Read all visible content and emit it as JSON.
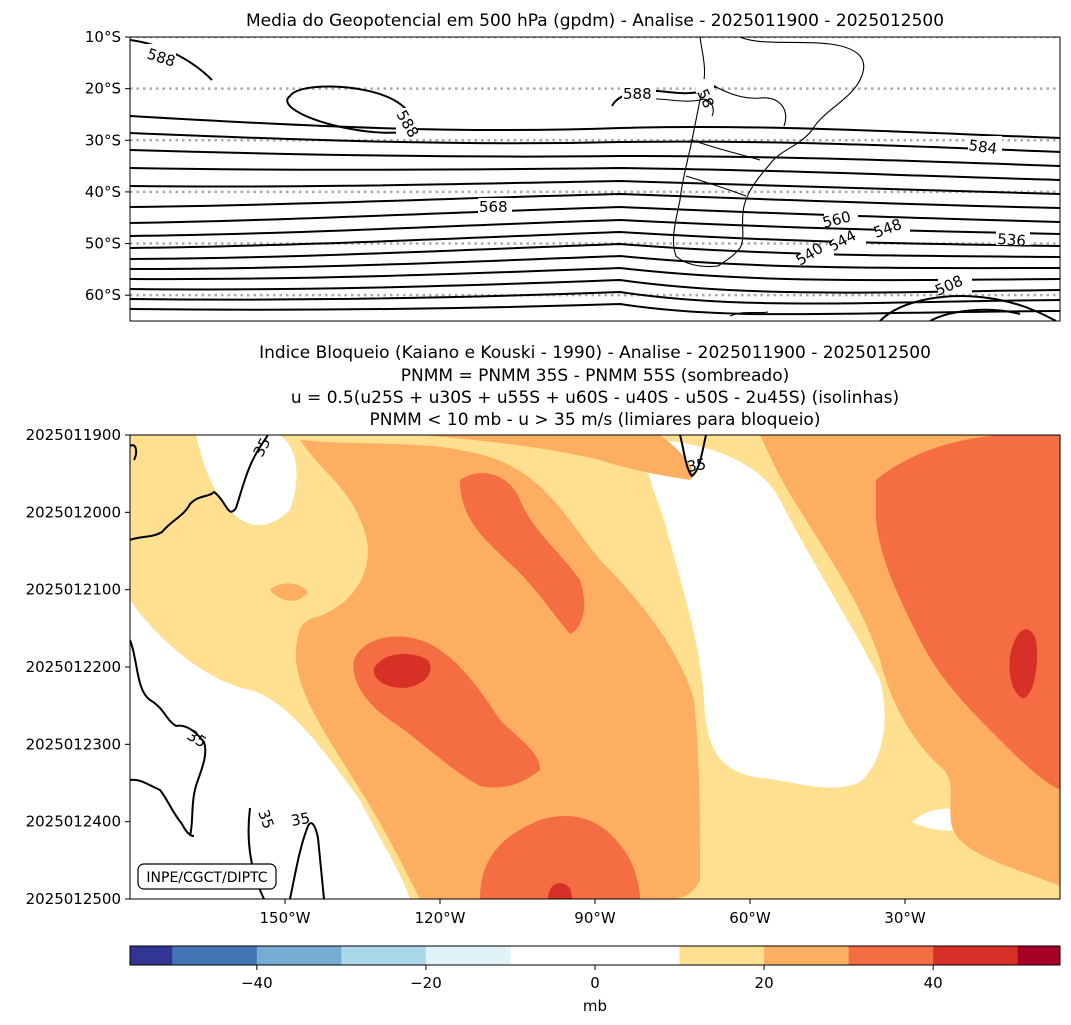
{
  "chart_data": [
    {
      "type": "contour",
      "title": "Media do Geopotencial em 500 hPa (gpdm) - Analise - 2025011900 - 2025012500",
      "y_tick_labels": [
        "10°S",
        "20°S",
        "30°S",
        "40°S",
        "50°S",
        "60°S"
      ],
      "y_tick_values": [
        -10,
        -20,
        -30,
        -40,
        -50,
        -60
      ],
      "ylim": [
        -65,
        -10
      ],
      "xlim": [
        -180,
        0
      ],
      "grid": "latitude lines dotted",
      "contour_interval_gpdm": 4,
      "contour_labels": [
        "588",
        "588",
        "588",
        "58",
        "584",
        "568",
        "560",
        "548",
        "544",
        "540",
        "536",
        "508"
      ]
    },
    {
      "type": "heatmap",
      "title_lines": [
        "Indice Bloqueio (Kaiano e Kouski - 1990) - Analise - 2025011900 - 2025012500",
        "PNMM = PNMM 35S - PNMM 55S (sombreado)",
        "u = 0.5(u25S + u30S + u55S + u60S - u40S - u50S - 2u45S) (isolinhas)",
        "PNMM < 10 mb - u > 35 m/s (limiares para bloqueio)"
      ],
      "y_tick_labels": [
        "2025011900",
        "2025012000",
        "2025012100",
        "2025012200",
        "2025012300",
        "2025012400",
        "2025012500"
      ],
      "x_tick_labels": [
        "150°W",
        "120°W",
        "90°W",
        "60°W",
        "30°W"
      ],
      "x_tick_values": [
        -150,
        -120,
        -90,
        -60,
        -30
      ],
      "xlim": [
        -180,
        0
      ],
      "contour_labels": [
        "35",
        "35",
        "35",
        "35",
        "35"
      ],
      "credit": "INPE/CGCT/DIPTC",
      "colorbar": {
        "label": "mb",
        "range": [
          -55,
          55
        ],
        "bounds": [
          -55,
          -50,
          -40,
          -30,
          -20,
          -10,
          10,
          20,
          30,
          40,
          50,
          55
        ],
        "colors": [
          "#313695",
          "#4575b4",
          "#74add1",
          "#abd9e9",
          "#e0f3f8",
          "#ffffff",
          "#fee090",
          "#fdae61",
          "#f46d43",
          "#d73027",
          "#a50026"
        ],
        "tick_labels": [
          "−40",
          "−20",
          "0",
          "20",
          "40"
        ],
        "tick_values": [
          -40,
          -20,
          0,
          20,
          40
        ]
      }
    }
  ]
}
